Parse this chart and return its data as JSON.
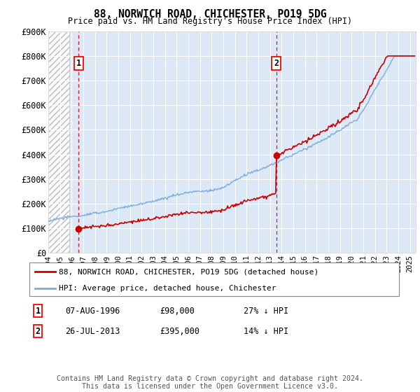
{
  "title": "88, NORWICH ROAD, CHICHESTER, PO19 5DG",
  "subtitle": "Price paid vs. HM Land Registry's House Price Index (HPI)",
  "ylim": [
    0,
    900000
  ],
  "yticks": [
    0,
    100000,
    200000,
    300000,
    400000,
    500000,
    600000,
    700000,
    800000,
    900000
  ],
  "ytick_labels": [
    "£0",
    "£100K",
    "£200K",
    "£300K",
    "£400K",
    "£500K",
    "£600K",
    "£700K",
    "£800K",
    "£900K"
  ],
  "xlim_start": 1994.0,
  "xlim_end": 2025.5,
  "sale1_year": 1996.59,
  "sale1_price": 98000,
  "sale1_label": "1",
  "sale1_date": "07-AUG-1996",
  "sale1_amount": "£98,000",
  "sale1_note": "27% ↓ HPI",
  "sale2_year": 2013.55,
  "sale2_price": 395000,
  "sale2_label": "2",
  "sale2_date": "26-JUL-2013",
  "sale2_amount": "£395,000",
  "sale2_note": "14% ↓ HPI",
  "legend_line1": "88, NORWICH ROAD, CHICHESTER, PO19 5DG (detached house)",
  "legend_line2": "HPI: Average price, detached house, Chichester",
  "footer": "Contains HM Land Registry data © Crown copyright and database right 2024.\nThis data is licensed under the Open Government Licence v3.0.",
  "hatch_end_year": 1995.8,
  "line_color_red": "#cc0000",
  "line_color_blue": "#7aade0",
  "background_color": "#ffffff",
  "plot_bg_color": "#dce8f5"
}
